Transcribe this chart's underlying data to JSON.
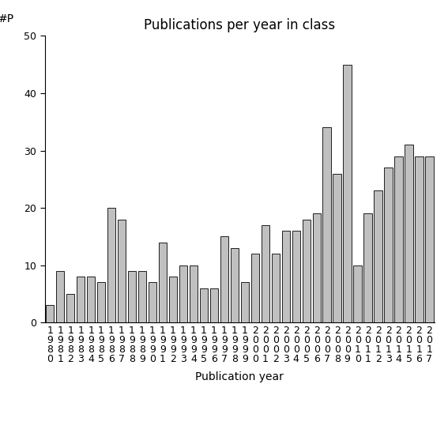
{
  "title": "Publications per year in class",
  "xlabel": "Publication year",
  "ylabel": "#P",
  "years": [
    1980,
    1981,
    1982,
    1983,
    1984,
    1985,
    1986,
    1987,
    1988,
    1989,
    1990,
    1991,
    1992,
    1993,
    1994,
    1995,
    1996,
    1997,
    1998,
    1999,
    2000,
    2001,
    2002,
    2003,
    2004,
    2005,
    2006,
    2007,
    2008,
    2009,
    2010,
    2011,
    2012,
    2013,
    2014,
    2015,
    2016,
    2017
  ],
  "values": [
    3,
    9,
    5,
    8,
    8,
    7,
    20,
    18,
    9,
    9,
    7,
    14,
    8,
    10,
    10,
    6,
    6,
    15,
    13,
    7,
    12,
    17,
    12,
    16,
    16,
    18,
    19,
    34,
    26,
    45,
    10,
    19,
    23,
    27,
    29,
    31,
    29,
    29
  ],
  "bar_color": "#c0c0c0",
  "bar_edge_color": "#000000",
  "ylim": [
    0,
    50
  ],
  "yticks": [
    0,
    10,
    20,
    30,
    40,
    50
  ],
  "background_color": "#ffffff",
  "title_fontsize": 12,
  "label_fontsize": 10,
  "tick_fontsize": 9
}
